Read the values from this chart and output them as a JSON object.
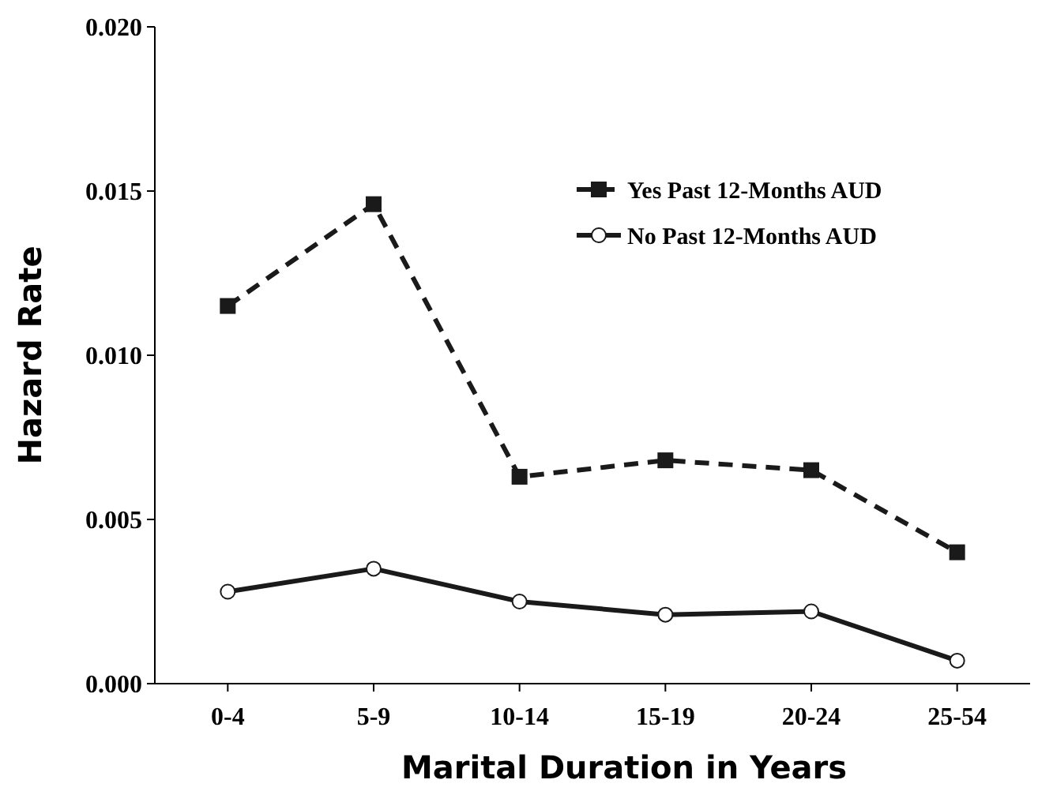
{
  "chart_data": {
    "type": "line",
    "xlabel": "Marital Duration in Years",
    "ylabel": "Hazard Rate",
    "categories": [
      "0-4",
      "5-9",
      "10-14",
      "15-19",
      "20-24",
      "25-54"
    ],
    "series": [
      {
        "name": "Yes Past 12-Months AUD",
        "color": "#1a1a1a",
        "values": [
          0.0115,
          0.0146,
          0.0063,
          0.0068,
          0.0065,
          0.004
        ],
        "marker": "square",
        "line_style": "dashed"
      },
      {
        "name": "No Past 12-Months AUD",
        "color": "#1a1a1a",
        "values": [
          0.0028,
          0.0035,
          0.0025,
          0.0021,
          0.0022,
          0.0007
        ],
        "marker": "circle",
        "line_style": "solid"
      }
    ],
    "ylim": [
      0,
      0.02
    ],
    "yticks": [
      {
        "value": 0,
        "label": "0.000"
      },
      {
        "value": 0.005,
        "label": "0.005"
      },
      {
        "value": 0.01,
        "label": "0.010"
      },
      {
        "value": 0.015,
        "label": "0.015"
      },
      {
        "value": 0.02,
        "label": "0.020"
      }
    ],
    "grid": false,
    "legend": "top right"
  }
}
